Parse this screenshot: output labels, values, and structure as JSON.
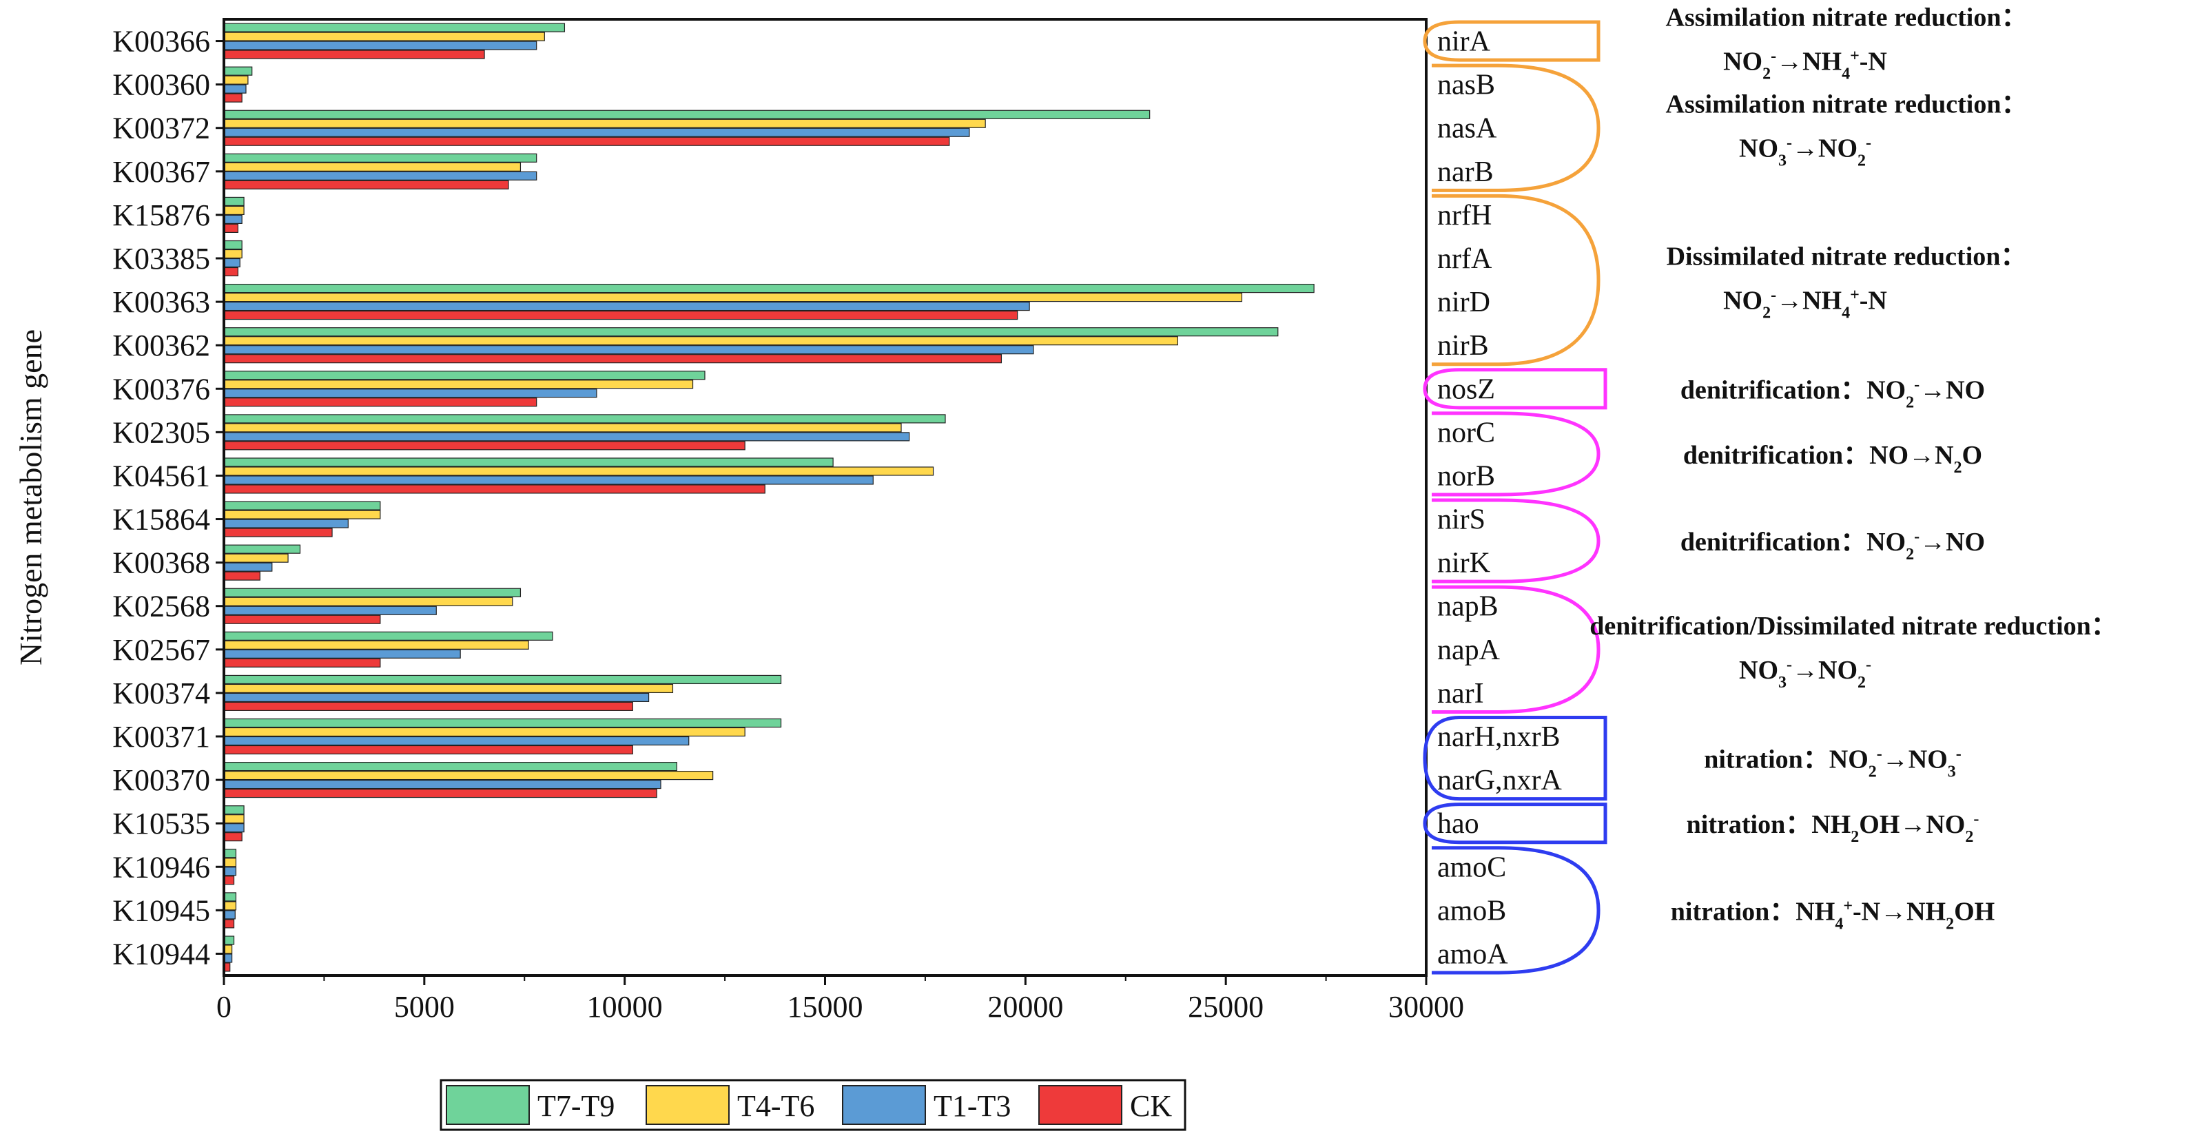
{
  "chart_data": {
    "type": "bar",
    "orientation": "horizontal",
    "ylabel": "Nitrogen metabolism gene",
    "xlim": [
      0,
      30000
    ],
    "xticks": [
      0,
      5000,
      10000,
      15000,
      20000,
      25000,
      30000
    ],
    "categories": [
      "K00366",
      "K00360",
      "K00372",
      "K00367",
      "K15876",
      "K03385",
      "K00363",
      "K00362",
      "K00376",
      "K02305",
      "K04561",
      "K15864",
      "K00368",
      "K02568",
      "K02567",
      "K00374",
      "K00371",
      "K00370",
      "K10535",
      "K10946",
      "K10945",
      "K10944"
    ],
    "genes": [
      "nirA",
      "nasB",
      "nasA",
      "narB",
      "nrfH",
      "nrfA",
      "nirD",
      "nirB",
      "nosZ",
      "norC",
      "norB",
      "nirS",
      "nirK",
      "napB",
      "napA",
      "narI",
      "narH,nxrB",
      "narG,nxrA",
      "hao",
      "amoC",
      "amoB",
      "amoA"
    ],
    "series": [
      {
        "name": "T7-T9",
        "color": "#6fd39a",
        "values": [
          8500,
          700,
          23100,
          7800,
          500,
          450,
          27200,
          26300,
          12000,
          18000,
          15200,
          3900,
          1900,
          7400,
          8200,
          13900,
          13900,
          11300,
          500,
          300,
          300,
          250
        ]
      },
      {
        "name": "T4-T6",
        "color": "#ffd84d",
        "values": [
          8000,
          600,
          19000,
          7400,
          500,
          450,
          25400,
          23800,
          11700,
          16900,
          17700,
          3900,
          1600,
          7200,
          7600,
          11200,
          13000,
          12200,
          500,
          300,
          300,
          200
        ]
      },
      {
        "name": "T1-T3",
        "color": "#5b9bd5",
        "values": [
          7800,
          550,
          18600,
          7800,
          450,
          400,
          20100,
          20200,
          9300,
          17100,
          16200,
          3100,
          1200,
          5300,
          5900,
          10600,
          11600,
          10900,
          500,
          300,
          280,
          200
        ]
      },
      {
        "name": "CK",
        "color": "#ee3a3a",
        "values": [
          6500,
          450,
          18100,
          7100,
          350,
          350,
          19800,
          19400,
          7800,
          13000,
          13500,
          2700,
          900,
          3900,
          3900,
          10200,
          10200,
          10800,
          450,
          250,
          250,
          150
        ]
      }
    ],
    "legend_position": "bottom",
    "grid": false,
    "annotations": [
      {
        "color": "#f5a23a",
        "shape": "box",
        "from": 0,
        "to": 0,
        "line1": "Assimilation nitrate reduction：",
        "line2": [
          [
            "NO",
            ""
          ],
          [
            "2",
            "sub"
          ],
          [
            "-",
            "sup"
          ],
          [
            "→NH",
            ""
          ],
          [
            "4",
            "sub"
          ],
          [
            "+",
            "sup"
          ],
          [
            "-N",
            ""
          ]
        ]
      },
      {
        "color": "#f5a23a",
        "shape": "arc",
        "from": 1,
        "to": 3,
        "line1": "Assimilation nitrate reduction：",
        "line2": [
          [
            "NO",
            ""
          ],
          [
            "3",
            "sub"
          ],
          [
            "-",
            "sup"
          ],
          [
            "→NO",
            ""
          ],
          [
            "2",
            "sub"
          ],
          [
            "-",
            "sup"
          ]
        ]
      },
      {
        "color": "#f5a23a",
        "shape": "arc",
        "from": 4,
        "to": 7,
        "line1": "Dissimilated nitrate reduction：",
        "line2": [
          [
            "NO",
            ""
          ],
          [
            "2",
            "sub"
          ],
          [
            "-",
            "sup"
          ],
          [
            "→NH",
            ""
          ],
          [
            "4",
            "sub"
          ],
          [
            "+",
            "sup"
          ],
          [
            "-N",
            ""
          ]
        ]
      },
      {
        "color": "#ff33ff",
        "shape": "box",
        "from": 8,
        "to": 8,
        "line1": "",
        "line2": [
          [
            "denitrification：NO",
            ""
          ],
          [
            "2",
            "sub"
          ],
          [
            "-",
            "sup"
          ],
          [
            "→NO",
            ""
          ]
        ]
      },
      {
        "color": "#ff33ff",
        "shape": "arc",
        "from": 9,
        "to": 10,
        "line1": "",
        "line2": [
          [
            "denitrification：NO→N",
            ""
          ],
          [
            "2",
            "sub"
          ],
          [
            "O",
            ""
          ]
        ]
      },
      {
        "color": "#ff33ff",
        "shape": "arc",
        "from": 11,
        "to": 12,
        "line1": "",
        "line2": [
          [
            "denitrification：NO",
            ""
          ],
          [
            "2",
            "sub"
          ],
          [
            "-",
            "sup"
          ],
          [
            "→NO",
            ""
          ]
        ]
      },
      {
        "color": "#ff33ff",
        "shape": "arc",
        "from": 13,
        "to": 15,
        "line1": "denitrification/Dissimilated nitrate reduction：",
        "line2": [
          [
            "NO",
            ""
          ],
          [
            "3",
            "sub"
          ],
          [
            "-",
            "sup"
          ],
          [
            "→NO",
            ""
          ],
          [
            "2",
            "sub"
          ],
          [
            "-",
            "sup"
          ]
        ]
      },
      {
        "color": "#2e3cf0",
        "shape": "box",
        "from": 16,
        "to": 17,
        "line1": "",
        "line2": [
          [
            "nitration：NO",
            ""
          ],
          [
            "2",
            "sub"
          ],
          [
            "-",
            "sup"
          ],
          [
            "→NO",
            ""
          ],
          [
            "3",
            "sub"
          ],
          [
            "-",
            "sup"
          ]
        ]
      },
      {
        "color": "#2e3cf0",
        "shape": "box",
        "from": 18,
        "to": 18,
        "line1": "",
        "line2": [
          [
            "nitration：NH",
            ""
          ],
          [
            "2",
            "sub"
          ],
          [
            "OH→NO",
            ""
          ],
          [
            "2",
            "sub"
          ],
          [
            "-",
            "sup"
          ]
        ]
      },
      {
        "color": "#2e3cf0",
        "shape": "arc",
        "from": 19,
        "to": 21,
        "line1": "",
        "line2": [
          [
            "nitration：NH",
            ""
          ],
          [
            "4",
            "sub"
          ],
          [
            "+",
            "sup"
          ],
          [
            "-N→NH",
            ""
          ],
          [
            "2",
            "sub"
          ],
          [
            "OH",
            ""
          ]
        ]
      }
    ]
  }
}
